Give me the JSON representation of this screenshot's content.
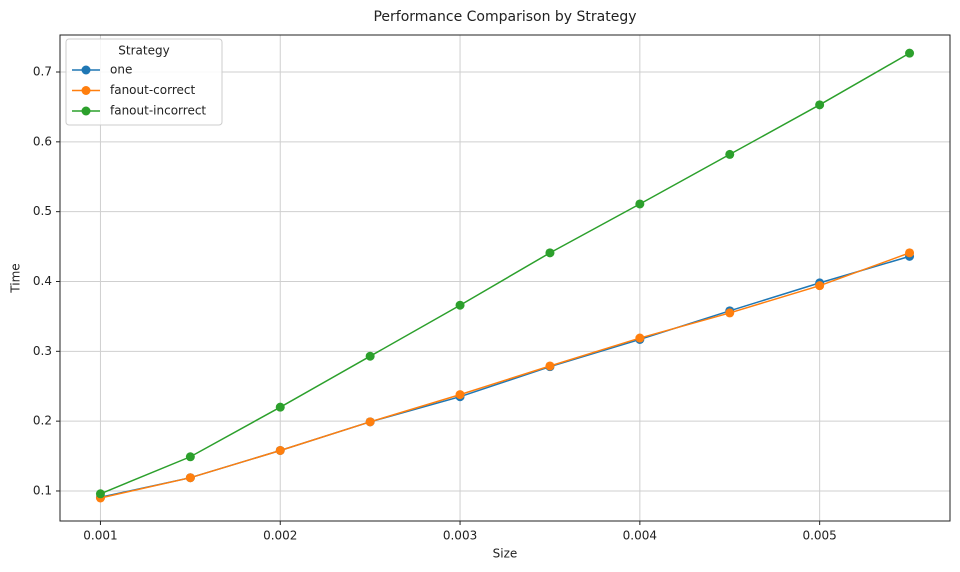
{
  "chart_data": {
    "type": "line",
    "title": "Performance Comparison by Strategy",
    "x_label": "Size",
    "y_label": "Time",
    "x": [
      0.001,
      0.0015,
      0.002,
      0.0025,
      0.003,
      0.0035,
      0.004,
      0.0045,
      0.005,
      0.0055
    ],
    "series": [
      {
        "name": "one",
        "color": "#1f77b4",
        "values": [
          0.091,
          0.119,
          0.158,
          0.199,
          0.235,
          0.278,
          0.317,
          0.358,
          0.398,
          0.436
        ]
      },
      {
        "name": "fanout-correct",
        "color": "#ff7f0e",
        "values": [
          0.09,
          0.119,
          0.158,
          0.199,
          0.238,
          0.279,
          0.319,
          0.355,
          0.394,
          0.441
        ]
      },
      {
        "name": "fanout-incorrect",
        "color": "#2ca02c",
        "values": [
          0.096,
          0.149,
          0.22,
          0.293,
          0.366,
          0.441,
          0.511,
          0.582,
          0.653,
          0.727
        ]
      }
    ],
    "xlim": [
      0.000775,
      0.005725
    ],
    "ylim": [
      0.057,
      0.753
    ],
    "xticks": [
      0.001,
      0.002,
      0.003,
      0.004,
      0.005
    ],
    "yticks": [
      0.1,
      0.2,
      0.3,
      0.4,
      0.5,
      0.6,
      0.7
    ],
    "grid": true,
    "legend_title": "Strategy",
    "legend_position": "upper-left"
  }
}
